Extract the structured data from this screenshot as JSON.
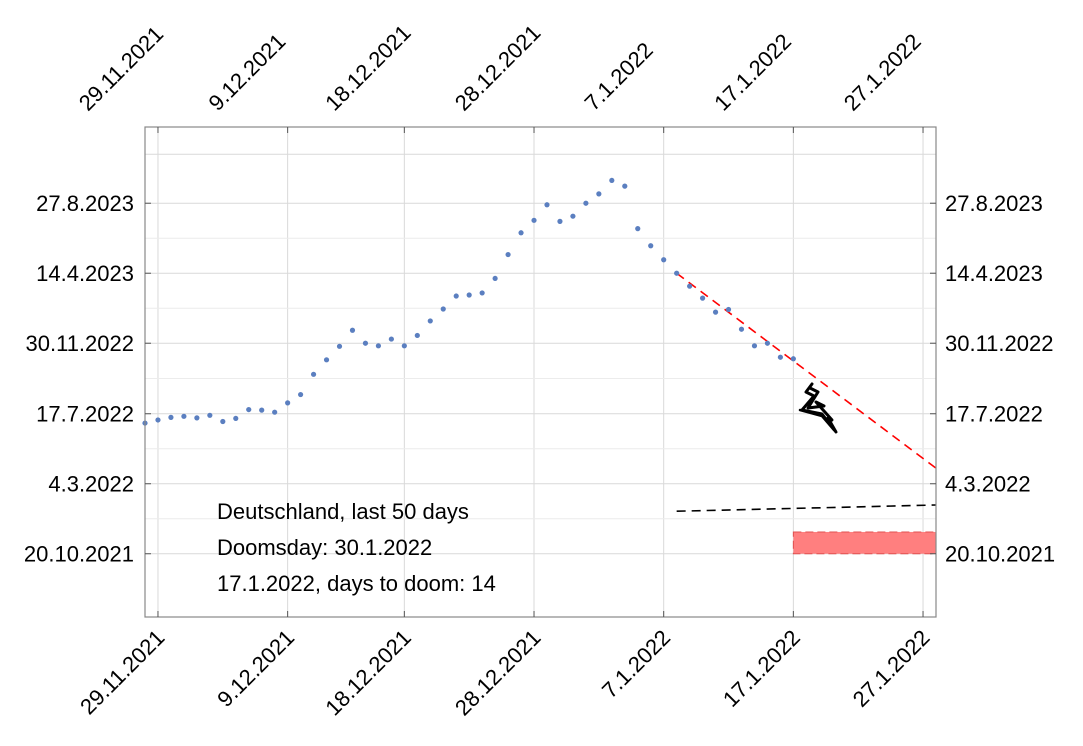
{
  "chart_data": {
    "type": "scatter",
    "title": "",
    "xlabel": "",
    "ylabel": "",
    "x_ticks": [
      "29.11.2021",
      "9.12.2021",
      "18.12.2021",
      "28.12.2021",
      "7.1.2022",
      "17.1.2022",
      "27.1.2022"
    ],
    "y_ticks": [
      "20.10.2021",
      "4.3.2022",
      "17.7.2022",
      "30.11.2022",
      "14.4.2023",
      "27.8.2023"
    ],
    "xlim": [
      "28.11.2021",
      "28.1.2022"
    ],
    "ylim": [
      "20.6.2021",
      "21.1.2024"
    ],
    "grid": true,
    "series": [
      {
        "role": "daily_forecast",
        "color": "#5B7FC0",
        "points": [
          [
            "28.11.2021",
            "29.6.2022"
          ],
          [
            "29.11.2021",
            "5.7.2022"
          ],
          [
            "30.11.2021",
            "10.7.2022"
          ],
          [
            "1.12.2021",
            "12.7.2022"
          ],
          [
            "2.12.2021",
            "9.7.2022"
          ],
          [
            "3.12.2021",
            "14.7.2022"
          ],
          [
            "4.12.2021",
            "2.7.2022"
          ],
          [
            "5.12.2021",
            "8.7.2022"
          ],
          [
            "6.12.2021",
            "25.7.2022"
          ],
          [
            "7.12.2021",
            "24.7.2022"
          ],
          [
            "8.12.2021",
            "20.7.2022"
          ],
          [
            "9.12.2021",
            "7.8.2022"
          ],
          [
            "10.12.2021",
            "23.8.2022"
          ],
          [
            "11.12.2021",
            "1.10.2022"
          ],
          [
            "12.12.2021",
            "29.10.2022"
          ],
          [
            "13.12.2021",
            "24.11.2022"
          ],
          [
            "14.12.2021",
            "25.12.2022"
          ],
          [
            "15.12.2021",
            "30.11.2022"
          ],
          [
            "16.12.2021",
            "25.11.2022"
          ],
          [
            "17.12.2021",
            "8.12.2022"
          ],
          [
            "18.12.2021",
            "25.11.2022"
          ],
          [
            "19.12.2021",
            "15.12.2022"
          ],
          [
            "20.12.2021",
            "12.1.2023"
          ],
          [
            "21.12.2021",
            "4.2.2023"
          ],
          [
            "22.12.2021",
            "1.3.2023"
          ],
          [
            "23.12.2021",
            "3.3.2023"
          ],
          [
            "24.12.2021",
            "7.3.2023"
          ],
          [
            "25.12.2021",
            "4.4.2023"
          ],
          [
            "26.12.2021",
            "20.5.2023"
          ],
          [
            "27.12.2021",
            "1.7.2023"
          ],
          [
            "28.12.2021",
            "25.7.2023"
          ],
          [
            "29.12.2021",
            "24.8.2023"
          ],
          [
            "30.12.2021",
            "23.7.2023"
          ],
          [
            "31.12.2021",
            "2.8.2023"
          ],
          [
            "1.1.2022",
            "27.8.2023"
          ],
          [
            "2.1.2022",
            "14.9.2023"
          ],
          [
            "3.1.2022",
            "10.10.2023"
          ],
          [
            "4.1.2022",
            "29.9.2023"
          ],
          [
            "5.1.2022",
            "9.7.2023"
          ],
          [
            "6.1.2022",
            "6.6.2023"
          ],
          [
            "7.1.2022",
            "10.5.2023"
          ],
          [
            "8.1.2022",
            "14.4.2023"
          ],
          [
            "9.1.2022",
            "20.3.2023"
          ],
          [
            "10.1.2022",
            "25.2.2023"
          ],
          [
            "11.1.2022",
            "29.1.2023"
          ],
          [
            "12.1.2022",
            "3.2.2023"
          ],
          [
            "13.1.2022",
            "27.12.2022"
          ],
          [
            "14.1.2022",
            "25.11.2022"
          ],
          [
            "15.1.2022",
            "30.11.2022"
          ],
          [
            "16.1.2022",
            "3.11.2022"
          ],
          [
            "17.1.2022",
            "31.10.2022"
          ]
        ]
      }
    ],
    "trend_line": {
      "color": "#FF0000",
      "style": "dashed",
      "from": [
        "8.1.2022",
        "14.4.2023"
      ],
      "to": [
        "28.1.2022",
        "3.4.2022"
      ]
    },
    "reference_line": {
      "color": "#000000",
      "style": "dashed",
      "from": [
        "8.1.2022",
        "10.1.2022"
      ],
      "to": [
        "28.1.2022",
        "22.1.2022"
      ]
    },
    "doom_band": {
      "color": "#FF7F7F",
      "x_from": "17.1.2022",
      "x_to": "28.1.2022",
      "y_from": "20.10.2021",
      "y_to": "1.12.2021"
    },
    "annotations": [
      "Deutschland, last 50 days",
      "Doomsday: 30.1.2022",
      "17.1.2022, days to doom: 14"
    ],
    "marker_icon": "black-scribble-arrow-icon"
  }
}
